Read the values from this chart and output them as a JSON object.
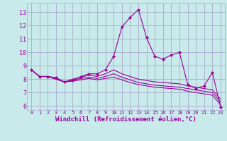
{
  "background_color": "#c8eaea",
  "grid_color": "#aaaacc",
  "line_color": "#990099",
  "marker_color": "#990099",
  "xlabel": "Windchill (Refroidissement éolien,°C)",
  "xlim": [
    -0.5,
    23.5
  ],
  "ylim": [
    5.7,
    13.7
  ],
  "yticks": [
    6,
    7,
    8,
    9,
    10,
    11,
    12,
    13
  ],
  "xticks": [
    0,
    1,
    2,
    3,
    4,
    5,
    6,
    7,
    8,
    9,
    10,
    11,
    12,
    13,
    14,
    15,
    16,
    17,
    18,
    19,
    20,
    21,
    22,
    23
  ],
  "lines": [
    {
      "x": [
        0,
        1,
        2,
        3,
        4,
        5,
        6,
        7,
        8,
        9,
        10,
        11,
        12,
        13,
        14,
        15,
        16,
        17,
        18,
        19,
        20,
        21,
        22,
        23
      ],
      "y": [
        8.7,
        8.2,
        8.2,
        8.1,
        7.8,
        7.9,
        8.2,
        8.4,
        8.4,
        8.7,
        9.7,
        11.9,
        12.6,
        13.2,
        11.1,
        9.7,
        9.5,
        9.8,
        10.0,
        7.6,
        7.3,
        7.5,
        8.5,
        5.9
      ],
      "has_markers": true
    },
    {
      "x": [
        0,
        1,
        2,
        3,
        4,
        5,
        6,
        7,
        8,
        9,
        10,
        11,
        12,
        13,
        14,
        15,
        16,
        17,
        18,
        19,
        20,
        21,
        22,
        23
      ],
      "y": [
        8.7,
        8.2,
        8.2,
        8.1,
        7.8,
        8.0,
        8.15,
        8.3,
        8.2,
        8.4,
        8.7,
        8.4,
        8.2,
        8.0,
        7.9,
        7.8,
        7.75,
        7.7,
        7.65,
        7.5,
        7.4,
        7.3,
        7.2,
        6.5
      ],
      "has_markers": false
    },
    {
      "x": [
        0,
        1,
        2,
        3,
        4,
        5,
        6,
        7,
        8,
        9,
        10,
        11,
        12,
        13,
        14,
        15,
        16,
        17,
        18,
        19,
        20,
        21,
        22,
        23
      ],
      "y": [
        8.7,
        8.2,
        8.2,
        8.0,
        7.8,
        7.9,
        8.05,
        8.15,
        8.05,
        8.2,
        8.4,
        8.15,
        7.95,
        7.75,
        7.65,
        7.55,
        7.5,
        7.45,
        7.4,
        7.3,
        7.2,
        7.1,
        7.0,
        6.3
      ],
      "has_markers": false
    },
    {
      "x": [
        0,
        1,
        2,
        3,
        4,
        5,
        6,
        7,
        8,
        9,
        10,
        11,
        12,
        13,
        14,
        15,
        16,
        17,
        18,
        19,
        20,
        21,
        22,
        23
      ],
      "y": [
        8.7,
        8.2,
        8.2,
        8.0,
        7.8,
        7.85,
        7.95,
        8.05,
        7.95,
        8.05,
        8.15,
        7.95,
        7.75,
        7.6,
        7.5,
        7.4,
        7.35,
        7.3,
        7.25,
        7.1,
        7.0,
        6.9,
        6.8,
        6.1
      ],
      "has_markers": false
    }
  ]
}
